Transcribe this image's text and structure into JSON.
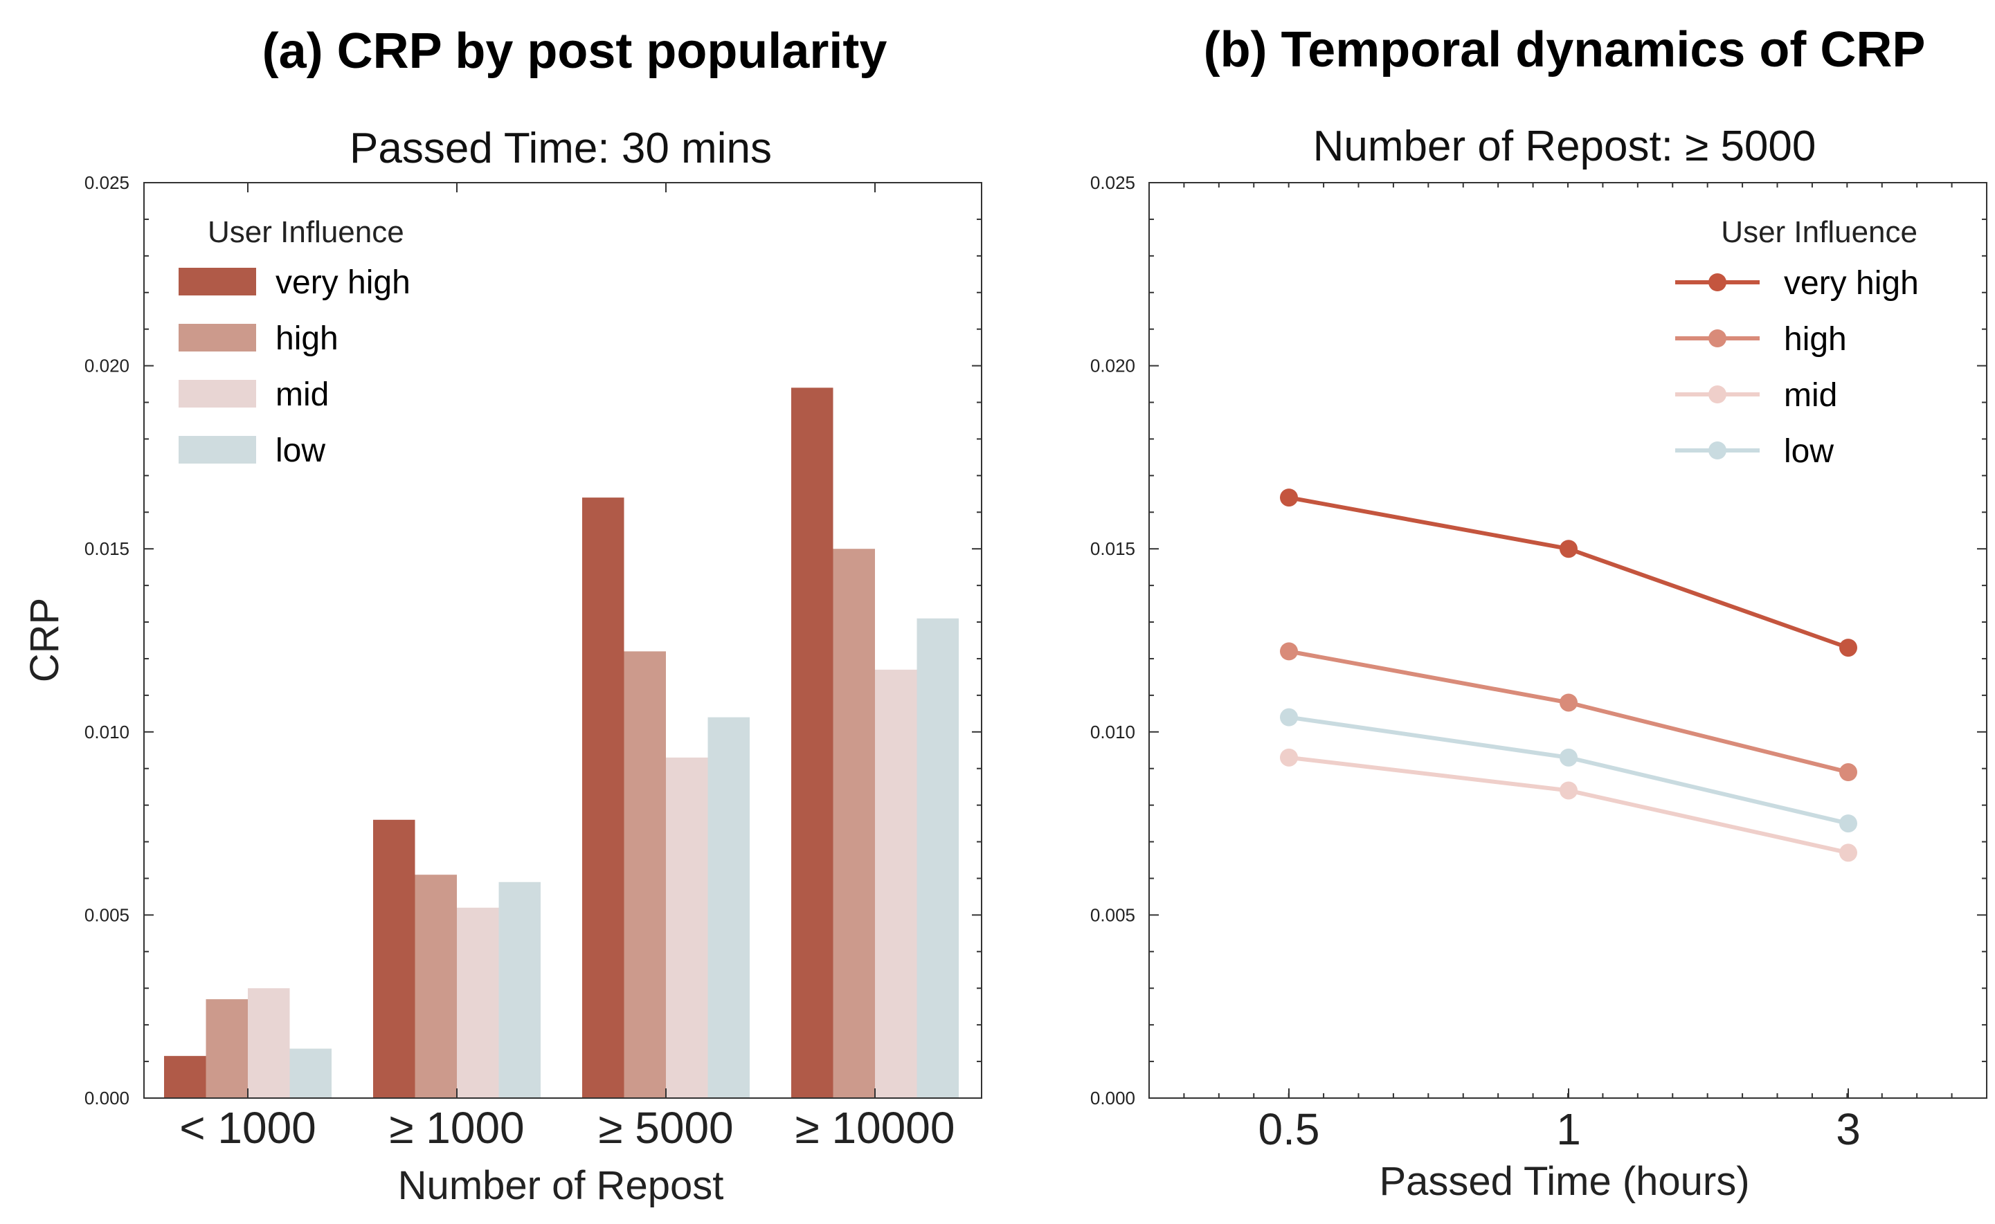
{
  "chart_data": [
    {
      "type": "bar",
      "title": "(a) CRP by post popularity",
      "subtitle": "Passed Time: 30 mins",
      "xlabel": "Number of Repost",
      "ylabel": "CRP",
      "ylim": [
        0,
        0.025
      ],
      "yticks": [
        "0.000",
        "0.005",
        "0.010",
        "0.015",
        "0.020",
        "0.025"
      ],
      "categories": [
        "< 1000",
        "≥ 1000",
        "≥ 5000",
        "≥ 10000"
      ],
      "legend_title": "User Influence",
      "legend_position": "top-left",
      "series": [
        {
          "name": "very high",
          "color": "#b05a48",
          "values": [
            0.00115,
            0.0076,
            0.0164,
            0.0194
          ]
        },
        {
          "name": "high",
          "color": "#cc9a8c",
          "values": [
            0.0027,
            0.0061,
            0.0122,
            0.015
          ]
        },
        {
          "name": "mid",
          "color": "#e8d5d3",
          "values": [
            0.003,
            0.0052,
            0.0093,
            0.0117
          ]
        },
        {
          "name": "low",
          "color": "#cfdcdf",
          "values": [
            0.00135,
            0.0059,
            0.0104,
            0.0131
          ]
        }
      ]
    },
    {
      "type": "line",
      "title": "(b) Temporal dynamics of CRP",
      "subtitle": "Number of Repost: ≥ 5000",
      "xlabel": "Passed Time (hours)",
      "ylabel": "",
      "ylim": [
        0,
        0.025
      ],
      "yticks": [
        "0.000",
        "0.005",
        "0.010",
        "0.015",
        "0.020",
        "0.025"
      ],
      "x": [
        "0.5",
        "1",
        "3"
      ],
      "legend_title": "User Influence",
      "legend_position": "top-right",
      "series": [
        {
          "name": "very high",
          "color": "#c4553e",
          "values": [
            0.0164,
            0.015,
            0.0123
          ]
        },
        {
          "name": "high",
          "color": "#d98b79",
          "values": [
            0.0122,
            0.0108,
            0.0089
          ]
        },
        {
          "name": "mid",
          "color": "#efcfca",
          "values": [
            0.0093,
            0.0084,
            0.0067
          ]
        },
        {
          "name": "low",
          "color": "#c9dbe0",
          "values": [
            0.0104,
            0.0093,
            0.0075
          ]
        }
      ]
    }
  ]
}
